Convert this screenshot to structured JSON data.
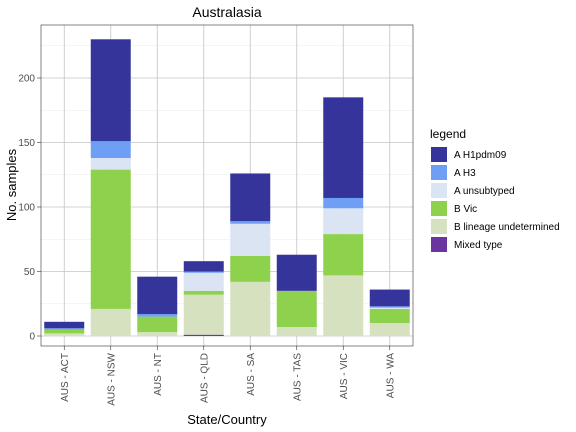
{
  "chart_data": {
    "type": "bar",
    "stacked": true,
    "title": "Australasia",
    "xlabel": "State/Country",
    "ylabel": "No. samples",
    "ylim": [
      0,
      240
    ],
    "yticks": [
      0,
      50,
      100,
      150,
      200
    ],
    "grid": true,
    "legend_title": "legend",
    "legend_position": "right",
    "categories": [
      "AUS - ACT",
      "AUS - NSW",
      "AUS - NT",
      "AUS - QLD",
      "AUS - SA",
      "AUS - TAS",
      "AUS - VIC",
      "AUS - WA"
    ],
    "series": [
      {
        "name": "A H1pdm09",
        "color": "#34349a",
        "values": [
          5,
          79,
          29,
          8,
          37,
          28,
          78,
          13
        ]
      },
      {
        "name": "A H3",
        "color": "#6e9ff5",
        "values": [
          1,
          13,
          2,
          1,
          2,
          0,
          8,
          1
        ]
      },
      {
        "name": "A unsubtyped",
        "color": "#dae4f2",
        "values": [
          0,
          9,
          0,
          14,
          25,
          0,
          20,
          1
        ]
      },
      {
        "name": "B Vic",
        "color": "#8dd14c",
        "values": [
          3,
          108,
          12,
          3,
          20,
          28,
          32,
          11
        ]
      },
      {
        "name": "B lineage undetermined",
        "color": "#d6e1c0",
        "values": [
          2,
          21,
          3,
          31,
          42,
          7,
          47,
          10
        ]
      },
      {
        "name": "Mixed type",
        "color": "#6a359e",
        "values": [
          0,
          0,
          0,
          1,
          0,
          0,
          0,
          0
        ]
      }
    ]
  }
}
